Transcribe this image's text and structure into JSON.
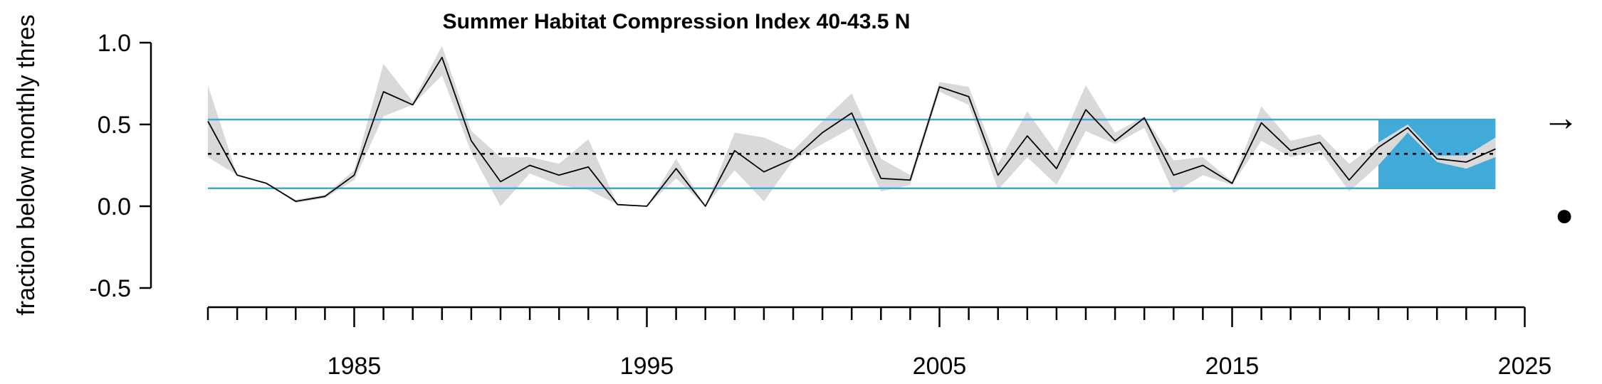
{
  "chart_data": {
    "type": "line",
    "title": "Summer Habitat Compression Index 40-43.5 N",
    "ylabel": "fraction below monthly thres",
    "xlabel": "",
    "xlim": [
      1980,
      2025
    ],
    "ylim": [
      -0.5,
      1.0
    ],
    "y_ticks": [
      -0.5,
      0.0,
      0.5,
      1.0
    ],
    "y_tick_labels": [
      "-0.5",
      "0.0",
      "0.5",
      "1.0"
    ],
    "x_major_ticks": [
      1985,
      1995,
      2005,
      2015,
      2025
    ],
    "x_tick_labels": [
      "1985",
      "1995",
      "2005",
      "2015",
      "2025"
    ],
    "x_minor_tick_step": 1,
    "mean": 0.32,
    "upper_sd": 0.53,
    "lower_sd": 0.11,
    "highlight_period": [
      2020,
      2024
    ],
    "colors": {
      "sd_lines": "#3fa9d6",
      "highlight": "#40aad8",
      "ribbon": "#d9d9d9",
      "series": "#000000"
    },
    "series": [
      {
        "x": [
          1980,
          1981,
          1982,
          1983,
          1984,
          1985,
          1986,
          1987,
          1988,
          1989,
          1990,
          1991,
          1992,
          1993,
          1994,
          1995,
          1996,
          1997,
          1998,
          1999,
          2000,
          2001,
          2002,
          2003,
          2004,
          2005,
          2006,
          2007,
          2008,
          2009,
          2010,
          2011,
          2012,
          2013,
          2014,
          2015,
          2016,
          2017,
          2018,
          2019,
          2020,
          2021,
          2022,
          2023,
          2024
        ],
        "values": [
          0.52,
          0.19,
          0.14,
          0.03,
          0.06,
          0.19,
          0.7,
          0.62,
          0.91,
          0.4,
          0.15,
          0.25,
          0.19,
          0.24,
          0.01,
          0.0,
          0.23,
          0.0,
          0.34,
          0.21,
          0.29,
          0.45,
          0.57,
          0.17,
          0.16,
          0.73,
          0.67,
          0.19,
          0.43,
          0.23,
          0.59,
          0.4,
          0.54,
          0.19,
          0.25,
          0.14,
          0.51,
          0.34,
          0.39,
          0.16,
          0.36,
          0.48,
          0.29,
          0.27,
          0.35
        ],
        "lower": [
          0.3,
          0.19,
          0.14,
          0.02,
          0.05,
          0.16,
          0.55,
          0.62,
          0.8,
          0.33,
          0.0,
          0.2,
          0.13,
          0.1,
          0.01,
          0.0,
          0.17,
          0.0,
          0.22,
          0.03,
          0.28,
          0.38,
          0.48,
          0.09,
          0.13,
          0.7,
          0.62,
          0.1,
          0.3,
          0.13,
          0.46,
          0.38,
          0.48,
          0.08,
          0.19,
          0.13,
          0.4,
          0.3,
          0.34,
          0.09,
          0.25,
          0.45,
          0.27,
          0.23,
          0.3
        ],
        "upper": [
          0.74,
          0.19,
          0.14,
          0.04,
          0.07,
          0.22,
          0.87,
          0.64,
          0.98,
          0.46,
          0.3,
          0.3,
          0.26,
          0.41,
          0.01,
          0.0,
          0.29,
          0.0,
          0.45,
          0.42,
          0.34,
          0.52,
          0.69,
          0.29,
          0.19,
          0.76,
          0.73,
          0.26,
          0.58,
          0.33,
          0.74,
          0.45,
          0.55,
          0.28,
          0.3,
          0.15,
          0.61,
          0.4,
          0.44,
          0.26,
          0.39,
          0.5,
          0.31,
          0.31,
          0.42
        ]
      }
    ],
    "trend_symbol": "→",
    "mean_symbol": "●",
    "grid": false,
    "legend": "none"
  }
}
